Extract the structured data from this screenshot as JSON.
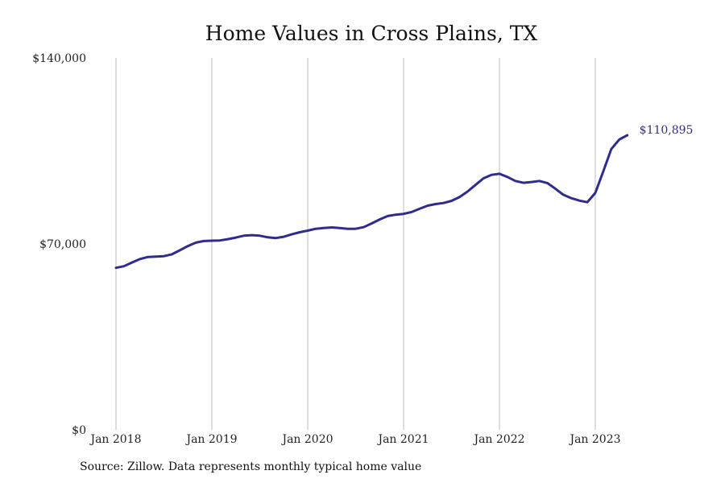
{
  "chart_data": {
    "type": "line",
    "title": "Home Values in Cross Plains, TX",
    "xlabel": "",
    "ylabel": "",
    "ylim": [
      0,
      140000
    ],
    "yticks": [
      0,
      70000,
      140000
    ],
    "ytick_labels": [
      "$0",
      "$70,000",
      "$140,000"
    ],
    "xticks": [
      "2018-01",
      "2019-01",
      "2020-01",
      "2021-01",
      "2022-01",
      "2023-01"
    ],
    "xtick_labels": [
      "Jan 2018",
      "Jan 2019",
      "Jan 2020",
      "Jan 2021",
      "Jan 2022",
      "Jan 2023"
    ],
    "grid": "vertical",
    "color": "#2e2d8f",
    "end_label": "$110,895",
    "series": [
      {
        "x": [
          "2018-01",
          "2018-02",
          "2018-03",
          "2018-04",
          "2018-05",
          "2018-06",
          "2018-07",
          "2018-08",
          "2018-09",
          "2018-10",
          "2018-11",
          "2018-12",
          "2019-01",
          "2019-02",
          "2019-03",
          "2019-04",
          "2019-05",
          "2019-06",
          "2019-07",
          "2019-08",
          "2019-09",
          "2019-10",
          "2019-11",
          "2019-12",
          "2020-01",
          "2020-02",
          "2020-03",
          "2020-04",
          "2020-05",
          "2020-06",
          "2020-07",
          "2020-08",
          "2020-09",
          "2020-10",
          "2020-11",
          "2020-12",
          "2021-01",
          "2021-02",
          "2021-03",
          "2021-04",
          "2021-05",
          "2021-06",
          "2021-07",
          "2021-08",
          "2021-09",
          "2021-10",
          "2021-11",
          "2021-12",
          "2022-01",
          "2022-02",
          "2022-03",
          "2022-04",
          "2022-05",
          "2022-06",
          "2022-07",
          "2022-08",
          "2022-09",
          "2022-10",
          "2022-11",
          "2022-12",
          "2023-01",
          "2023-02",
          "2023-03",
          "2023-04",
          "2023-05"
        ],
        "y": [
          61000,
          61600,
          63000,
          64300,
          65100,
          65200,
          65400,
          66100,
          67600,
          69200,
          70500,
          71100,
          71200,
          71300,
          71800,
          72400,
          73100,
          73300,
          73100,
          72500,
          72200,
          72700,
          73600,
          74400,
          75000,
          75700,
          76000,
          76200,
          76000,
          75700,
          75700,
          76300,
          77700,
          79200,
          80500,
          81000,
          81300,
          82000,
          83200,
          84400,
          85000,
          85400,
          86200,
          87600,
          89700,
          92200,
          94700,
          96000,
          96400,
          95200,
          93700,
          93000,
          93300,
          93700,
          92900,
          90800,
          88500,
          87200,
          86300,
          85700,
          89200,
          97300,
          105700,
          109300,
          110895
        ]
      }
    ]
  },
  "footer": {
    "source": "Source: Zillow. Data represents monthly typical home value"
  }
}
